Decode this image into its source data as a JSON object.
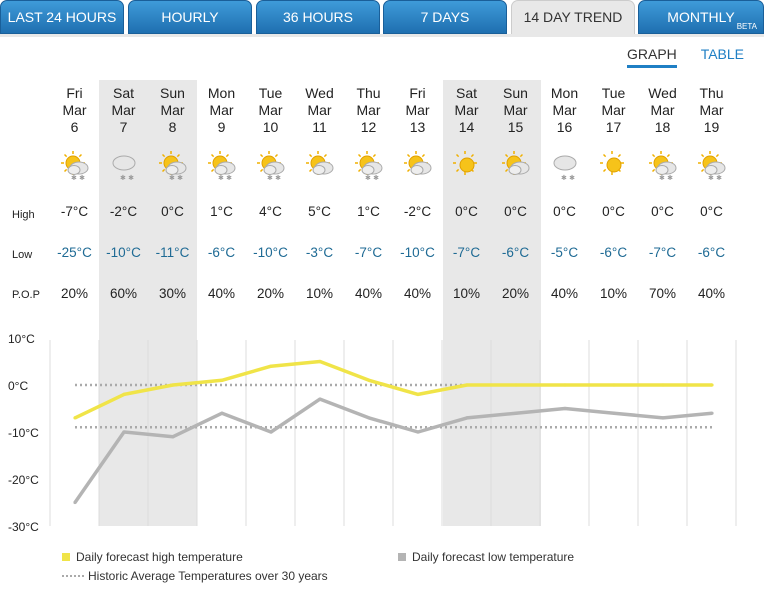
{
  "tabs": [
    {
      "label": "LAST 24 HOURS"
    },
    {
      "label": "HOURLY"
    },
    {
      "label": "36 HOURS"
    },
    {
      "label": "7 DAYS"
    },
    {
      "label": "14 DAY TREND"
    },
    {
      "label": "MONTHLY",
      "badge": "BETA"
    }
  ],
  "view_links": {
    "graph": "GRAPH",
    "table": "TABLE"
  },
  "row_labels": {
    "high": "High",
    "low": "Low",
    "pop": "P.O.P"
  },
  "days": [
    {
      "dow": "Fri",
      "mon": "Mar",
      "date": "6",
      "high": "-7°C",
      "low": "-25°C",
      "pop": "20%",
      "icon": "sun-cloud-snow-icon"
    },
    {
      "dow": "Sat",
      "mon": "Mar",
      "date": "7",
      "high": "-2°C",
      "low": "-10°C",
      "pop": "60%",
      "icon": "cloud-snow-icon"
    },
    {
      "dow": "Sun",
      "mon": "Mar",
      "date": "8",
      "high": "0°C",
      "low": "-11°C",
      "pop": "30%",
      "icon": "sun-cloud-snow-icon"
    },
    {
      "dow": "Mon",
      "mon": "Mar",
      "date": "9",
      "high": "1°C",
      "low": "-6°C",
      "pop": "40%",
      "icon": "sun-cloud-snow-icon"
    },
    {
      "dow": "Tue",
      "mon": "Mar",
      "date": "10",
      "high": "4°C",
      "low": "-10°C",
      "pop": "20%",
      "icon": "sun-cloud-snow-icon"
    },
    {
      "dow": "Wed",
      "mon": "Mar",
      "date": "11",
      "high": "5°C",
      "low": "-3°C",
      "pop": "10%",
      "icon": "sun-cloud-icon"
    },
    {
      "dow": "Thu",
      "mon": "Mar",
      "date": "12",
      "high": "1°C",
      "low": "-7°C",
      "pop": "40%",
      "icon": "sun-cloud-snow-icon"
    },
    {
      "dow": "Fri",
      "mon": "Mar",
      "date": "13",
      "high": "-2°C",
      "low": "-10°C",
      "pop": "40%",
      "icon": "sun-cloud-icon"
    },
    {
      "dow": "Sat",
      "mon": "Mar",
      "date": "14",
      "high": "0°C",
      "low": "-7°C",
      "pop": "10%",
      "icon": "sun-icon"
    },
    {
      "dow": "Sun",
      "mon": "Mar",
      "date": "15",
      "high": "0°C",
      "low": "-6°C",
      "pop": "20%",
      "icon": "sun-cloud-icon"
    },
    {
      "dow": "Mon",
      "mon": "Mar",
      "date": "16",
      "high": "0°C",
      "low": "-5°C",
      "pop": "40%",
      "icon": "cloud-snow-icon"
    },
    {
      "dow": "Tue",
      "mon": "Mar",
      "date": "17",
      "high": "0°C",
      "low": "-6°C",
      "pop": "10%",
      "icon": "sun-icon"
    },
    {
      "dow": "Wed",
      "mon": "Mar",
      "date": "18",
      "high": "0°C",
      "low": "-7°C",
      "pop": "70%",
      "icon": "sun-cloud-snow-icon"
    },
    {
      "dow": "Thu",
      "mon": "Mar",
      "date": "19",
      "high": "0°C",
      "low": "-6°C",
      "pop": "40%",
      "icon": "sun-cloud-snow-icon"
    }
  ],
  "colors": {
    "tab": "#2f86c8",
    "high_line": "#f0e448",
    "low_line": "#b4b4b4",
    "historic": "#aaaaaa",
    "weekend_shade": "#e8e8e8"
  },
  "chart_data": {
    "type": "line",
    "x": [
      "Mar 6",
      "Mar 7",
      "Mar 8",
      "Mar 9",
      "Mar 10",
      "Mar 11",
      "Mar 12",
      "Mar 13",
      "Mar 14",
      "Mar 15",
      "Mar 16",
      "Mar 17",
      "Mar 18",
      "Mar 19"
    ],
    "series": [
      {
        "name": "Daily forecast high temperature",
        "values": [
          -7,
          -2,
          0,
          1,
          4,
          5,
          1,
          -2,
          0,
          0,
          0,
          0,
          0,
          0
        ],
        "color": "#f0e448"
      },
      {
        "name": "Daily forecast low temperature",
        "values": [
          -25,
          -10,
          -11,
          -6,
          -10,
          -3,
          -7,
          -10,
          -7,
          -6,
          -5,
          -6,
          -7,
          -6
        ],
        "color": "#b4b4b4"
      }
    ],
    "reference_lines": [
      {
        "name": "Historic Average Temperatures over 30 years",
        "values": [
          0,
          -9
        ]
      }
    ],
    "y_ticks": [
      "10°C",
      "0°C",
      "-10°C",
      "-20°C",
      "-30°C"
    ],
    "ylim": [
      -30,
      10
    ],
    "legend_placement": "bottom",
    "grid": "vertical"
  }
}
